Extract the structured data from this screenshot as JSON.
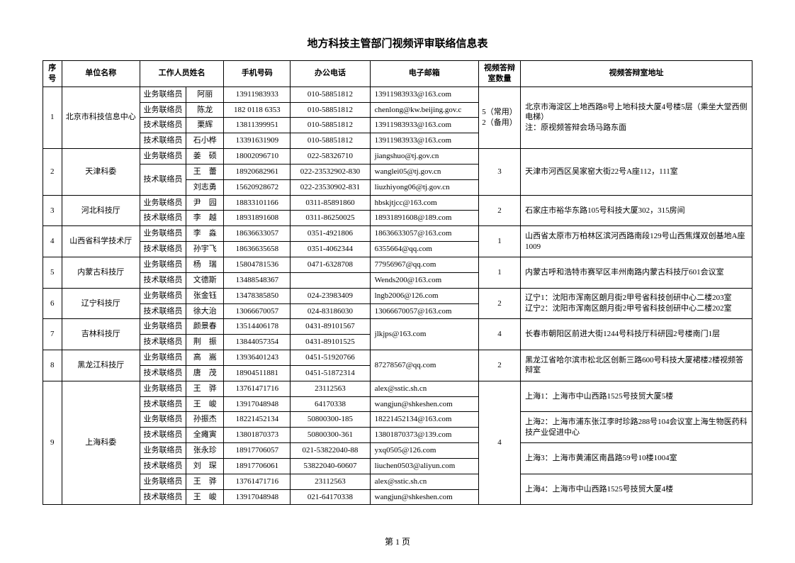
{
  "title": "地方科技主管部门视频评审联络信息表",
  "footer": "第 1 页",
  "headers": {
    "seq": "序号",
    "unit": "单位名称",
    "staff": "工作人员姓名",
    "mobile": "手机号码",
    "tel": "办公电话",
    "email": "电子邮箱",
    "qty": "视频答辩室数量",
    "addr": "视频答辩室地址"
  },
  "groups": [
    {
      "seq": "1",
      "unit": "北京市科技信息中心",
      "qty": "5（常用）\n2（备用）",
      "addrs": [
        {
          "span": 4,
          "text": "北京市海淀区上地西路8号上地科技大厦4号楼5层（乘坐大堂西侧电梯）\n注：原视频答辩会场马路东面"
        }
      ],
      "rows": [
        {
          "role": "业务联络员",
          "name": "阿丽",
          "mobile": "13911983933",
          "tel": "010-58851812",
          "email": "13911983933@163.com"
        },
        {
          "role": "业务联络员",
          "name": "陈龙",
          "mobile": "182 0118 6353",
          "tel": "010-58851812",
          "email": "chenlong@kw.beijing.gov.c"
        },
        {
          "role": "技术联络员",
          "name": "栗辉",
          "mobile": "13811399951",
          "tel": "010-58851812",
          "email": "13911983933@163.com"
        },
        {
          "role": "技术联络员",
          "name": "石小桦",
          "mobile": "13391631909",
          "tel": "010-58851812",
          "email": "13911983933@163.com"
        }
      ]
    },
    {
      "seq": "2",
      "unit": "天津科委",
      "qty": "3",
      "addrs": [
        {
          "span": 3,
          "text": "天津市河西区吴家窑大街22号A座112，111室"
        }
      ],
      "rows": [
        {
          "role": "业务联络员",
          "roleSpan": 1,
          "name": "姜　硕",
          "mobile": "18002096710",
          "tel": "022-58326710",
          "email": "jiangshuo@tj.gov.cn"
        },
        {
          "role": "技术联络员",
          "roleSpan": 2,
          "name": "王　蕾",
          "mobile": "18920682961",
          "tel": "022-23532902-830",
          "email": "wanglei05@tj.gov.cn"
        },
        {
          "role": null,
          "name": "刘志勇",
          "mobile": "15620928672",
          "tel": "022-23530902-831",
          "email": "liuzhiyong06@tj.gov.cn"
        }
      ]
    },
    {
      "seq": "3",
      "unit": "河北科技厅",
      "qty": "2",
      "addrs": [
        {
          "span": 2,
          "text": "石家庄市裕华东路105号科技大厦302，315房间"
        }
      ],
      "rows": [
        {
          "role": "业务联络员",
          "name": "尹　园",
          "mobile": "18833101166",
          "tel": "0311-85891860",
          "email": "hbskjtjcc@163.com"
        },
        {
          "role": "技术联络员",
          "name": "李　越",
          "mobile": "18931891608",
          "tel": "0311-86250025",
          "email": "18931891608@189.com"
        }
      ]
    },
    {
      "seq": "4",
      "unit": "山西省科学技术厅",
      "qty": "1",
      "addrs": [
        {
          "span": 2,
          "text": "山西省太原市万柏林区滨河西路南段129号山西焦煤双创基地A座1009"
        }
      ],
      "rows": [
        {
          "role": "业务联络员",
          "name": "李　淼",
          "mobile": "18636633057",
          "tel": "0351-4921806",
          "email": "18636633057@163.com"
        },
        {
          "role": "技术联络员",
          "name": "孙宇飞",
          "mobile": "18636635658",
          "tel": "0351-4062344",
          "email": "6355664@qq.com"
        }
      ]
    },
    {
      "seq": "5",
      "unit": "内蒙古科技厅",
      "qty": "1",
      "addrs": [
        {
          "span": 2,
          "text": "内蒙古呼和浩特市赛罕区丰州南路内蒙古科技厅601会议室"
        }
      ],
      "rows": [
        {
          "role": "业务联络员",
          "name": "杨　瑞",
          "mobile": "15804781536",
          "tel": "0471-6328708",
          "email": "77956967@qq.com"
        },
        {
          "role": "技术联络员",
          "name": "文德斯",
          "mobile": "13488548367",
          "tel": "",
          "email": "Wends200@163.com"
        }
      ]
    },
    {
      "seq": "6",
      "unit": "辽宁科技厅",
      "qty": "2",
      "addrs": [
        {
          "span": 2,
          "text": "辽宁1：沈阳市浑南区朗月街2甲号省科技创研中心二楼203室\n辽宁2：沈阳市浑南区朗月街2甲号省科技创研中心二楼202室"
        }
      ],
      "rows": [
        {
          "role": "业务联络员",
          "name": "张金钰",
          "mobile": "13478385850",
          "tel": "024-23983409",
          "email": "lngb2006@126.com"
        },
        {
          "role": "技术联络员",
          "name": "徐大治",
          "mobile": "13066670057",
          "tel": "024-83186030",
          "email": "13066670057@163.com"
        }
      ]
    },
    {
      "seq": "7",
      "unit": "吉林科技厅",
      "qty": "4",
      "emailSpan": 2,
      "addrs": [
        {
          "span": 2,
          "text": "长春市朝阳区前进大街1244号科技厅科研园2号楼南门1层"
        }
      ],
      "rows": [
        {
          "role": "业务联络员",
          "name": "颜景春",
          "mobile": "13514406178",
          "tel": "0431-89101567",
          "email": "jlkjps@163.com"
        },
        {
          "role": "技术联络员",
          "name": "荆　振",
          "mobile": "13844057354",
          "tel": "0431-89101525",
          "email": null
        }
      ]
    },
    {
      "seq": "8",
      "unit": "黑龙江科技厅",
      "qty": "2",
      "emailSpan": 2,
      "addrs": [
        {
          "span": 2,
          "text": "黑龙江省哈尔滨市松北区创新三路600号科技大厦裙楼2楼视频答辩室"
        }
      ],
      "rows": [
        {
          "role": "业务联络员",
          "name": "高　嵩",
          "mobile": "13936401243",
          "tel": "0451-51920766",
          "email": "87278567@qq.com"
        },
        {
          "role": "技术联络员",
          "name": "唐　茂",
          "mobile": "18904511881",
          "tel": "0451-51872314",
          "email": null
        }
      ]
    },
    {
      "seq": "9",
      "unit": "上海科委",
      "qty": "4",
      "addrs": [
        {
          "span": 2,
          "text": "上海1：上海市中山西路1525号技贸大厦5楼"
        },
        {
          "span": 2,
          "text": "上海2：上海市浦东张江李时珍路288号104会议室上海生物医药科技产业促进中心"
        },
        {
          "span": 2,
          "text": "上海3：上海市黄浦区南昌路59号10楼1004室"
        },
        {
          "span": 2,
          "text": "上海4：上海市中山西路1525号技贸大厦4楼"
        }
      ],
      "rows": [
        {
          "role": "业务联络员",
          "name": "王　骅",
          "mobile": "13761471716",
          "tel": "23112563",
          "email": "alex@sstic.sh.cn"
        },
        {
          "role": "技术联络员",
          "name": "王　峻",
          "mobile": "13917048948",
          "tel": "64170338",
          "email": "wangjun@shkeshen.com"
        },
        {
          "role": "业务联络员",
          "name": "孙振杰",
          "mobile": "18221452134",
          "tel": "50800300-185",
          "email": "18221452134@163.com"
        },
        {
          "role": "技术联络员",
          "name": "全瘫寅",
          "mobile": "13801870373",
          "tel": "50800300-361",
          "email": "13801870373@139.com"
        },
        {
          "role": "业务联络员",
          "name": "张永珍",
          "mobile": "18917706057",
          "tel": "021-53822040-88",
          "email": "yxq0505@126.com"
        },
        {
          "role": "技术联络员",
          "name": "刘　琛",
          "mobile": "18917706061",
          "tel": "53822040-60607",
          "email": "liuchen0503@aliyun.com"
        },
        {
          "role": "业务联络员",
          "name": "王　骅",
          "mobile": "13761471716",
          "tel": "23112563",
          "email": "alex@sstic.sh.cn"
        },
        {
          "role": "技术联络员",
          "name": "王　峻",
          "mobile": "13917048948",
          "tel": "021-64170338",
          "email": "wangjun@shkeshen.com"
        }
      ]
    }
  ]
}
